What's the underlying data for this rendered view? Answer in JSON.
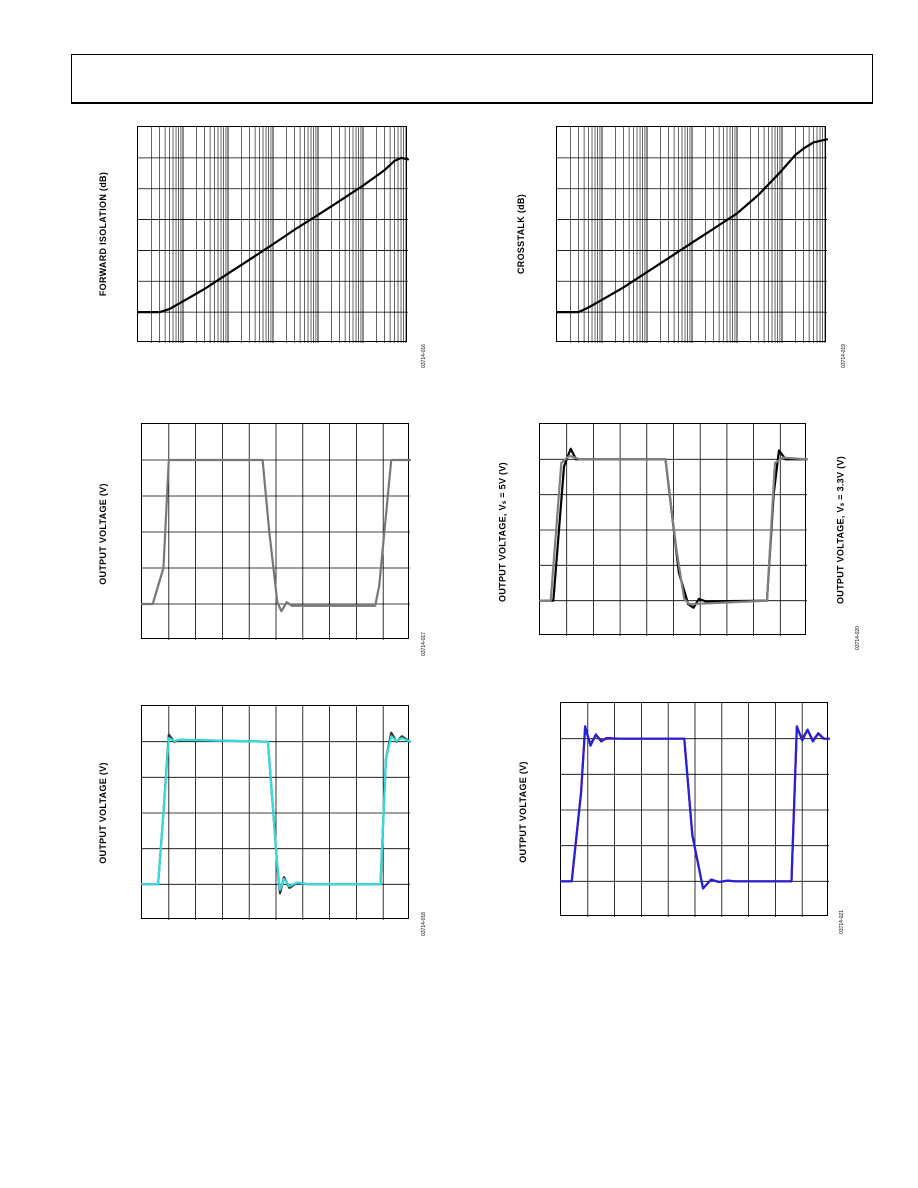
{
  "page": {
    "header": ""
  },
  "charts": [
    {
      "id": "c1",
      "ylabel": "FORWARD ISOLATION (dB)",
      "figid": "03714-016"
    },
    {
      "id": "c2",
      "ylabel": "CROSSTALK (dB)",
      "figid": "03714-019"
    },
    {
      "id": "c3",
      "ylabel": "OUTPUT VOLTAGE (V)",
      "figid": "03714-017"
    },
    {
      "id": "c4",
      "ylabel": "OUTPUT VOLTAGE, Vₛ = 5V (V)",
      "ylabel_right": "OUTPUT VOLTAGE, Vₛ = 3.3V (V)",
      "figid": "03714-020"
    },
    {
      "id": "c5",
      "ylabel": "OUTPUT VOLTAGE (V)",
      "figid": "03714-018"
    },
    {
      "id": "c6",
      "ylabel": "OUTPUT VOLTAGE (V)",
      "figid": "03714-021"
    }
  ],
  "chart_data": [
    {
      "type": "line",
      "xscale": "log",
      "grid": true,
      "ylabel": "FORWARD ISOLATION (dB)",
      "xlim": [
        0.001,
        1000
      ],
      "ylim": [
        -7,
        0
      ],
      "series": [
        {
          "color": "#000000",
          "x": [
            0.001,
            0.003,
            0.005,
            0.01,
            0.03,
            0.1,
            0.3,
            1,
            3,
            10,
            30,
            100,
            300,
            500,
            700,
            1000
          ],
          "y": [
            -6.0,
            -6.0,
            -5.9,
            -5.65,
            -5.25,
            -4.75,
            -4.3,
            -3.8,
            -3.33,
            -2.85,
            -2.4,
            -1.9,
            -1.4,
            -1.1,
            -1.0,
            -1.05
          ]
        }
      ]
    },
    {
      "type": "line",
      "xscale": "log",
      "grid": true,
      "ylabel": "CROSSTALK (dB)",
      "xlim": [
        0.001,
        1000
      ],
      "ylim": [
        -7,
        0
      ],
      "series": [
        {
          "color": "#000000",
          "x": [
            0.001,
            0.003,
            0.005,
            0.01,
            0.03,
            0.1,
            0.3,
            1,
            3,
            10,
            30,
            100,
            200,
            300,
            500,
            1000
          ],
          "y": [
            -6.0,
            -6.0,
            -5.85,
            -5.6,
            -5.2,
            -4.7,
            -4.25,
            -3.75,
            -3.3,
            -2.8,
            -2.2,
            -1.4,
            -0.9,
            -0.7,
            -0.5,
            -0.4
          ]
        }
      ]
    },
    {
      "type": "line",
      "grid": true,
      "ylabel": "OUTPUT VOLTAGE (V)",
      "xlim": [
        0,
        10
      ],
      "ylim": [
        -1,
        5
      ],
      "series": [
        {
          "color": "#777777",
          "x": [
            0,
            0.4,
            0.8,
            1.0,
            1.3,
            4.5,
            4.75,
            5.05,
            5.2,
            5.4,
            5.6,
            8.7,
            8.85,
            9.3,
            10
          ],
          "y": [
            0,
            0,
            1.0,
            4.0,
            4.0,
            4.0,
            2.0,
            0.05,
            -0.2,
            0.05,
            -0.05,
            -0.05,
            0.5,
            4.0,
            4.0
          ]
        }
      ]
    },
    {
      "type": "line",
      "grid": true,
      "ylabel": "OUTPUT VOLTAGE, Vₛ = 5V (V)",
      "xlim": [
        0,
        10
      ],
      "ylim": [
        -1,
        5
      ],
      "series": [
        {
          "color": "#000000",
          "x": [
            0,
            0.5,
            0.9,
            1.15,
            1.35,
            1.6,
            4.7,
            5.2,
            5.55,
            5.75,
            5.95,
            6.2,
            8.5,
            8.75,
            8.95,
            9.2,
            9.5,
            10
          ],
          "y": [
            0,
            0,
            3.8,
            4.3,
            4.0,
            4.0,
            4.0,
            0.8,
            -0.1,
            -0.2,
            0.05,
            -0.02,
            0,
            3.0,
            4.25,
            4.0,
            4.0,
            4.0
          ]
        },
        {
          "color": "#808080",
          "x": [
            0,
            0.4,
            0.8,
            1.1,
            1.5,
            4.7,
            5.1,
            5.4,
            5.6,
            8.5,
            8.8,
            9.1,
            10
          ],
          "y": [
            0,
            0,
            3.9,
            4.1,
            4.0,
            4.0,
            1.5,
            0.05,
            -0.1,
            0,
            3.9,
            4.05,
            4.0
          ]
        }
      ]
    },
    {
      "type": "line",
      "grid": true,
      "ylabel": "OUTPUT VOLTAGE (V)",
      "xlim": [
        0,
        10
      ],
      "ylim": [
        -1,
        5
      ],
      "series": [
        {
          "color": "#333333",
          "x": [
            0,
            0.6,
            0.8,
            1.0,
            1.2,
            1.4,
            4.7,
            5.05,
            5.15,
            5.3,
            5.5,
            5.8,
            6.2,
            8.9,
            9.1,
            9.3,
            9.5,
            9.7,
            10
          ],
          "y": [
            0,
            0,
            2.0,
            4.2,
            4.0,
            4.05,
            4.0,
            0.5,
            -0.25,
            0.2,
            -0.1,
            0.05,
            0,
            0,
            3.5,
            4.25,
            4.0,
            4.15,
            4.0
          ]
        },
        {
          "color": "#33dddd",
          "x": [
            0,
            0.6,
            0.8,
            1.0,
            1.2,
            1.4,
            4.7,
            5.05,
            5.15,
            5.3,
            5.5,
            5.8,
            6.2,
            8.9,
            9.1,
            9.3,
            9.5,
            9.7,
            10
          ],
          "y": [
            0,
            0,
            2.0,
            4.1,
            4.02,
            4.05,
            4.0,
            0.5,
            -0.15,
            0.15,
            -0.05,
            0.05,
            0,
            0,
            3.5,
            4.15,
            4.02,
            4.1,
            4.0
          ]
        }
      ]
    },
    {
      "type": "line",
      "grid": true,
      "ylabel": "OUTPUT VOLTAGE (V)",
      "xlim": [
        0,
        10
      ],
      "ylim": [
        -1,
        5
      ],
      "series": [
        {
          "color": "#cc1111",
          "x": [
            0,
            0.4,
            0.75,
            0.9,
            1.1,
            1.3,
            1.5,
            1.7,
            2.2,
            4.6,
            4.9,
            5.3,
            5.6,
            5.9,
            6.2,
            6.5,
            8.6,
            8.8,
            9.0,
            9.2,
            9.4,
            9.6,
            9.8,
            10
          ],
          "y": [
            0,
            0,
            2.5,
            4.3,
            3.85,
            4.1,
            3.95,
            4.0,
            4.0,
            4.0,
            1.3,
            -0.2,
            0.05,
            -0.02,
            0.02,
            0,
            0,
            4.3,
            4.0,
            4.25,
            3.95,
            4.15,
            4.0,
            4.0
          ]
        },
        {
          "color": "#2222dd",
          "x": [
            0,
            0.4,
            0.75,
            0.9,
            1.1,
            1.3,
            1.5,
            1.7,
            2.2,
            4.6,
            4.9,
            5.3,
            5.6,
            5.9,
            6.2,
            6.5,
            8.6,
            8.8,
            9.0,
            9.2,
            9.4,
            9.6,
            9.8,
            10
          ],
          "y": [
            0,
            0,
            2.5,
            4.35,
            3.8,
            4.12,
            3.92,
            4.02,
            4.0,
            4.0,
            1.3,
            -0.2,
            0.05,
            -0.02,
            0.02,
            0,
            0,
            4.35,
            3.95,
            4.25,
            3.92,
            4.15,
            4.0,
            4.0
          ]
        }
      ]
    }
  ]
}
